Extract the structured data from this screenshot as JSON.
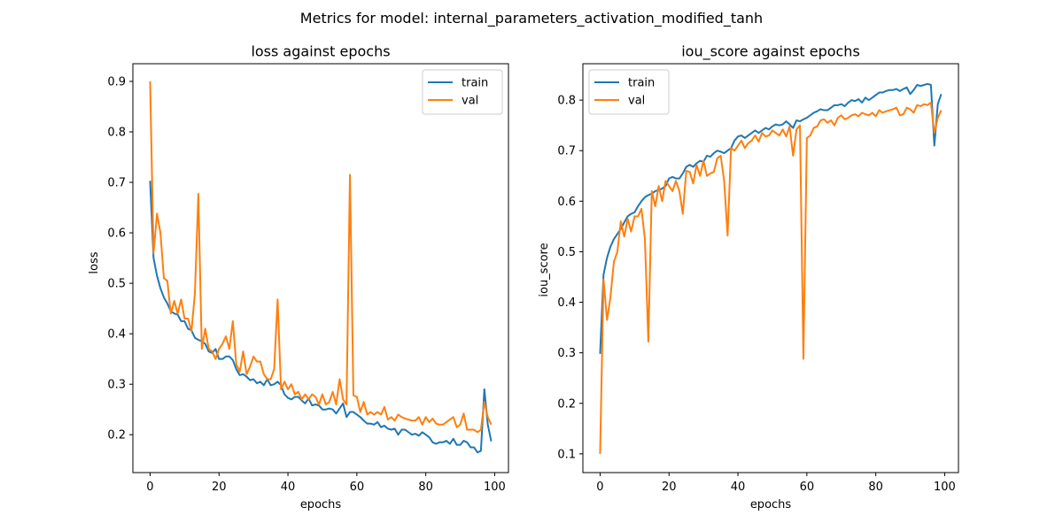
{
  "figure": {
    "title": "Metrics for model: internal_parameters_activation_modified_tanh"
  },
  "colors": {
    "train": "#1f77b4",
    "val": "#ff7f0e"
  },
  "chart_data": [
    {
      "type": "line",
      "title": "loss against epochs",
      "xlabel": "epochs",
      "ylabel": "loss",
      "xlim": [
        -5,
        104
      ],
      "ylim": [
        0.125,
        0.935
      ],
      "xticks": [
        0,
        20,
        40,
        60,
        80,
        100
      ],
      "yticks": [
        0.2,
        0.3,
        0.4,
        0.5,
        0.6,
        0.7,
        0.8,
        0.9
      ],
      "legend_loc": "top-right",
      "x": [
        0,
        1,
        2,
        3,
        4,
        5,
        6,
        7,
        8,
        9,
        10,
        11,
        12,
        13,
        14,
        15,
        16,
        17,
        18,
        19,
        20,
        21,
        22,
        23,
        24,
        25,
        26,
        27,
        28,
        29,
        30,
        31,
        32,
        33,
        34,
        35,
        36,
        37,
        38,
        39,
        40,
        41,
        42,
        43,
        44,
        45,
        46,
        47,
        48,
        49,
        50,
        51,
        52,
        53,
        54,
        55,
        56,
        57,
        58,
        59,
        60,
        61,
        62,
        63,
        64,
        65,
        66,
        67,
        68,
        69,
        70,
        71,
        72,
        73,
        74,
        75,
        76,
        77,
        78,
        79,
        80,
        81,
        82,
        83,
        84,
        85,
        86,
        87,
        88,
        89,
        90,
        91,
        92,
        93,
        94,
        95,
        96,
        97,
        98,
        99
      ],
      "series": [
        {
          "name": "train",
          "values": [
            0.703,
            0.55,
            0.515,
            0.49,
            0.472,
            0.46,
            0.445,
            0.44,
            0.438,
            0.425,
            0.425,
            0.41,
            0.407,
            0.392,
            0.388,
            0.385,
            0.38,
            0.365,
            0.362,
            0.37,
            0.35,
            0.35,
            0.355,
            0.355,
            0.348,
            0.33,
            0.318,
            0.32,
            0.315,
            0.308,
            0.31,
            0.302,
            0.305,
            0.298,
            0.31,
            0.298,
            0.3,
            0.305,
            0.298,
            0.28,
            0.273,
            0.27,
            0.275,
            0.275,
            0.268,
            0.262,
            0.272,
            0.258,
            0.26,
            0.258,
            0.25,
            0.25,
            0.252,
            0.25,
            0.242,
            0.252,
            0.262,
            0.235,
            0.245,
            0.245,
            0.24,
            0.235,
            0.228,
            0.222,
            0.222,
            0.22,
            0.225,
            0.215,
            0.218,
            0.212,
            0.21,
            0.212,
            0.2,
            0.21,
            0.21,
            0.205,
            0.2,
            0.202,
            0.198,
            0.205,
            0.2,
            0.195,
            0.185,
            0.182,
            0.185,
            0.185,
            0.188,
            0.182,
            0.192,
            0.18,
            0.18,
            0.188,
            0.185,
            0.175,
            0.175,
            0.165,
            0.168,
            0.29,
            0.22,
            0.187
          ]
        },
        {
          "name": "val",
          "values": [
            0.9,
            0.56,
            0.638,
            0.6,
            0.51,
            0.505,
            0.44,
            0.465,
            0.44,
            0.468,
            0.43,
            0.43,
            0.405,
            0.48,
            0.677,
            0.37,
            0.41,
            0.37,
            0.365,
            0.35,
            0.37,
            0.38,
            0.395,
            0.37,
            0.425,
            0.34,
            0.325,
            0.365,
            0.32,
            0.335,
            0.355,
            0.345,
            0.345,
            0.32,
            0.31,
            0.31,
            0.33,
            0.468,
            0.29,
            0.305,
            0.29,
            0.3,
            0.28,
            0.285,
            0.27,
            0.28,
            0.27,
            0.28,
            0.275,
            0.26,
            0.28,
            0.26,
            0.265,
            0.285,
            0.26,
            0.31,
            0.27,
            0.26,
            0.715,
            0.278,
            0.275,
            0.245,
            0.265,
            0.24,
            0.245,
            0.24,
            0.245,
            0.24,
            0.255,
            0.23,
            0.235,
            0.228,
            0.24,
            0.235,
            0.232,
            0.23,
            0.228,
            0.228,
            0.235,
            0.22,
            0.235,
            0.225,
            0.232,
            0.222,
            0.22,
            0.22,
            0.225,
            0.23,
            0.235,
            0.215,
            0.22,
            0.242,
            0.21,
            0.21,
            0.21,
            0.205,
            0.21,
            0.265,
            0.235,
            0.22
          ]
        }
      ]
    },
    {
      "type": "line",
      "title": "iou_score against epochs",
      "xlabel": "epochs",
      "ylabel": "iou_score",
      "xlim": [
        -5,
        104
      ],
      "ylim": [
        0.063,
        0.872
      ],
      "xticks": [
        0,
        20,
        40,
        60,
        80,
        100
      ],
      "yticks": [
        0.1,
        0.2,
        0.3,
        0.4,
        0.5,
        0.6,
        0.7,
        0.8
      ],
      "legend_loc": "top-left",
      "x": [
        0,
        1,
        2,
        3,
        4,
        5,
        6,
        7,
        8,
        9,
        10,
        11,
        12,
        13,
        14,
        15,
        16,
        17,
        18,
        19,
        20,
        21,
        22,
        23,
        24,
        25,
        26,
        27,
        28,
        29,
        30,
        31,
        32,
        33,
        34,
        35,
        36,
        37,
        38,
        39,
        40,
        41,
        42,
        43,
        44,
        45,
        46,
        47,
        48,
        49,
        50,
        51,
        52,
        53,
        54,
        55,
        56,
        57,
        58,
        59,
        60,
        61,
        62,
        63,
        64,
        65,
        66,
        67,
        68,
        69,
        70,
        71,
        72,
        73,
        74,
        75,
        76,
        77,
        78,
        79,
        80,
        81,
        82,
        83,
        84,
        85,
        86,
        87,
        88,
        89,
        90,
        91,
        92,
        93,
        94,
        95,
        96,
        97,
        98,
        99
      ],
      "series": [
        {
          "name": "train",
          "values": [
            0.298,
            0.455,
            0.488,
            0.51,
            0.525,
            0.535,
            0.545,
            0.558,
            0.57,
            0.575,
            0.578,
            0.59,
            0.6,
            0.608,
            0.612,
            0.615,
            0.62,
            0.622,
            0.625,
            0.63,
            0.645,
            0.648,
            0.645,
            0.645,
            0.655,
            0.668,
            0.672,
            0.668,
            0.675,
            0.68,
            0.678,
            0.69,
            0.688,
            0.695,
            0.7,
            0.698,
            0.695,
            0.7,
            0.705,
            0.72,
            0.728,
            0.73,
            0.725,
            0.73,
            0.735,
            0.74,
            0.735,
            0.74,
            0.745,
            0.742,
            0.748,
            0.752,
            0.75,
            0.752,
            0.758,
            0.752,
            0.745,
            0.76,
            0.758,
            0.762,
            0.765,
            0.77,
            0.775,
            0.778,
            0.782,
            0.78,
            0.78,
            0.785,
            0.79,
            0.79,
            0.792,
            0.788,
            0.795,
            0.8,
            0.798,
            0.802,
            0.795,
            0.805,
            0.8,
            0.805,
            0.81,
            0.815,
            0.815,
            0.818,
            0.82,
            0.82,
            0.822,
            0.818,
            0.822,
            0.825,
            0.812,
            0.82,
            0.83,
            0.828,
            0.83,
            0.832,
            0.83,
            0.71,
            0.792,
            0.812
          ]
        },
        {
          "name": "val",
          "values": [
            0.1,
            0.445,
            0.365,
            0.41,
            0.48,
            0.5,
            0.56,
            0.53,
            0.565,
            0.54,
            0.57,
            0.57,
            0.585,
            0.525,
            0.322,
            0.62,
            0.59,
            0.63,
            0.6,
            0.64,
            0.63,
            0.62,
            0.64,
            0.62,
            0.575,
            0.66,
            0.658,
            0.635,
            0.672,
            0.65,
            0.68,
            0.65,
            0.655,
            0.658,
            0.685,
            0.69,
            0.64,
            0.532,
            0.705,
            0.7,
            0.71,
            0.72,
            0.705,
            0.715,
            0.72,
            0.73,
            0.718,
            0.735,
            0.728,
            0.73,
            0.74,
            0.735,
            0.73,
            0.742,
            0.728,
            0.748,
            0.69,
            0.742,
            0.75,
            0.288,
            0.725,
            0.73,
            0.745,
            0.748,
            0.76,
            0.762,
            0.755,
            0.76,
            0.75,
            0.765,
            0.77,
            0.762,
            0.765,
            0.77,
            0.772,
            0.768,
            0.775,
            0.772,
            0.77,
            0.775,
            0.768,
            0.78,
            0.775,
            0.778,
            0.78,
            0.782,
            0.785,
            0.77,
            0.772,
            0.785,
            0.782,
            0.775,
            0.79,
            0.788,
            0.792,
            0.79,
            0.795,
            0.735,
            0.765,
            0.78
          ]
        }
      ]
    }
  ]
}
